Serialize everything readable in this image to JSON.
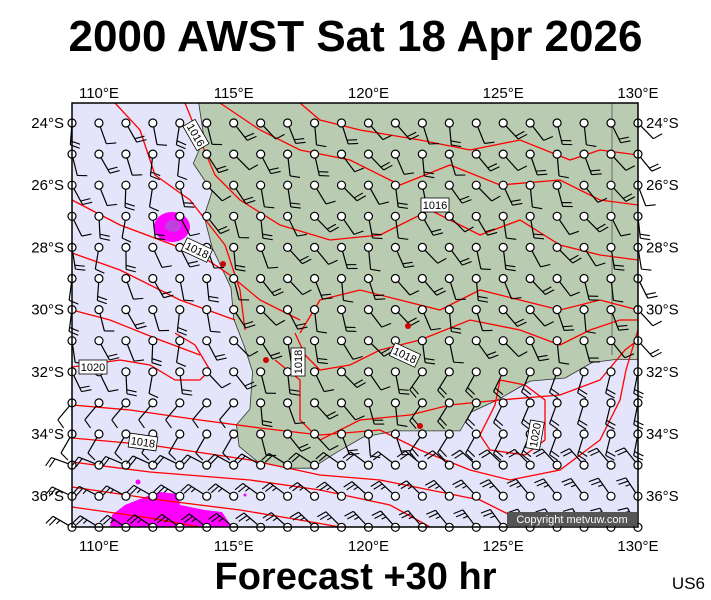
{
  "header": {
    "title": "2000 AWST Sat 18 Apr 2026"
  },
  "footer": {
    "forecast": "Forecast +30 hr",
    "code": "US6",
    "copyright": "Copyright metvuw.com"
  },
  "map": {
    "lon_labels": [
      "110°E",
      "115°E",
      "120°E",
      "125°E",
      "130°E"
    ],
    "lat_labels": [
      "24°S",
      "26°S",
      "28°S",
      "30°S",
      "32°S",
      "34°S",
      "36°S"
    ],
    "isobar_labels": [
      "1016",
      "1016",
      "1018",
      "1018",
      "1018",
      "1020",
      "1018",
      "1020"
    ],
    "colors": {
      "sea": "#e4e4fa",
      "land": "#b9ccb2",
      "isobar": "#ff0000",
      "precipitation": "#ff00ff"
    }
  }
}
